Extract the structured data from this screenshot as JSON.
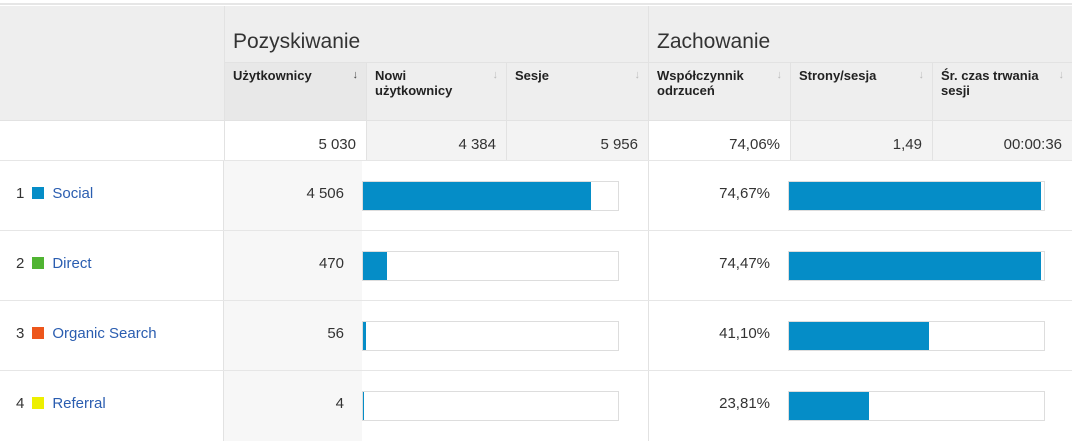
{
  "groups": {
    "acquisition": "Pozyskiwanie",
    "behavior": "Zachowanie"
  },
  "columns": [
    {
      "label": "Użytkownicy",
      "sorted": true
    },
    {
      "label": "Nowi użytkownicy",
      "sorted": false
    },
    {
      "label": "Sesje",
      "sorted": false
    },
    {
      "label": "Współczynnik odrzuceń",
      "sorted": false
    },
    {
      "label": "Strony/sesja",
      "sorted": false
    },
    {
      "label": "Śr. czas trwania sesji",
      "sorted": false
    }
  ],
  "sort_icon": "↓",
  "totals": [
    "5 030",
    "4 384",
    "5 956",
    "74,06%",
    "1,49",
    "00:00:36"
  ],
  "rows": [
    {
      "index": "1",
      "name": "Social",
      "color": "#058dc7",
      "users": "4 506",
      "users_fraction": 0.896,
      "bounce": "74,67%",
      "bounce_fraction": 0.99
    },
    {
      "index": "2",
      "name": "Direct",
      "color": "#50b432",
      "users": "470",
      "users_fraction": 0.093,
      "bounce": "74,47%",
      "bounce_fraction": 0.99
    },
    {
      "index": "3",
      "name": "Organic Search",
      "color": "#ed561b",
      "users": "56",
      "users_fraction": 0.011,
      "bounce": "41,10%",
      "bounce_fraction": 0.55
    },
    {
      "index": "4",
      "name": "Referral",
      "color": "#edef00",
      "users": "4",
      "users_fraction": 0.001,
      "bounce": "23,81%",
      "bounce_fraction": 0.315
    }
  ]
}
